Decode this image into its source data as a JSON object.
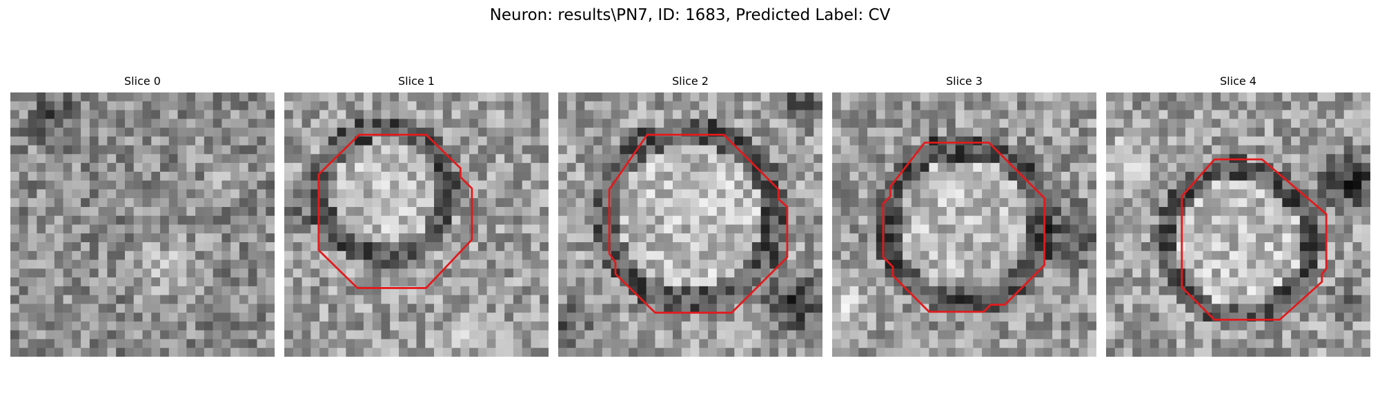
{
  "figure": {
    "title": "Neuron: results\\PN7, ID: 1683, Predicted Label: CV",
    "contour_color": "#e31a1c",
    "panels": [
      {
        "title": "Slice 0",
        "has_contour": false
      },
      {
        "title": "Slice 1",
        "has_contour": true
      },
      {
        "title": "Slice 2",
        "has_contour": true
      },
      {
        "title": "Slice 3",
        "has_contour": true
      },
      {
        "title": "Slice 4",
        "has_contour": true
      }
    ]
  }
}
